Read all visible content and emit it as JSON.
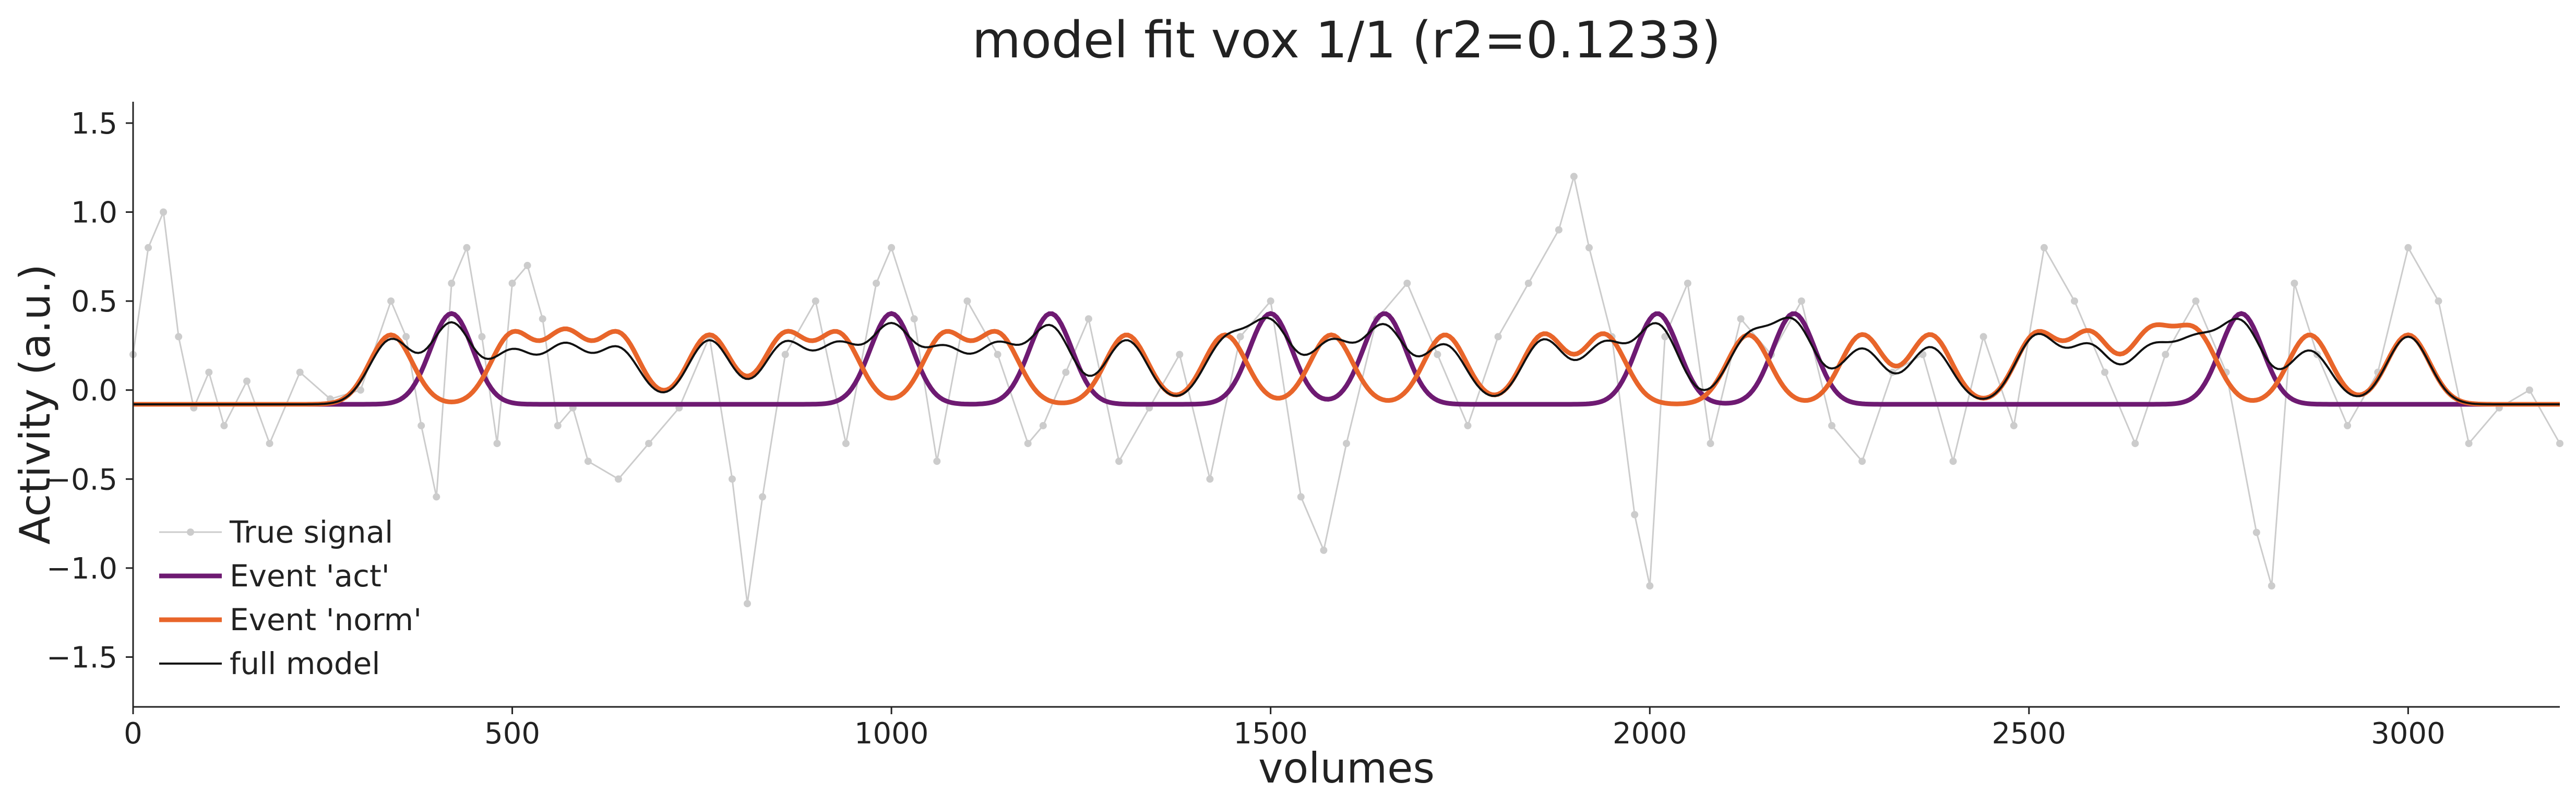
{
  "chart_data": {
    "type": "line",
    "title": "model fit vox 1/1 (r2=0.1233)",
    "xlabel": "volumes",
    "ylabel": "Activity (a.u.)",
    "xlim": [
      0,
      3200
    ],
    "ylim": [
      -1.78,
      1.62
    ],
    "xticks": [
      0,
      500,
      1000,
      1500,
      2000,
      2500,
      3000
    ],
    "yticks": [
      -1.5,
      -1.0,
      -0.5,
      0.0,
      0.5,
      1.0,
      1.5
    ],
    "ytick_labels": [
      "−1.5",
      "−1.0",
      "−0.5",
      "0.0",
      "0.5",
      "1.0",
      "1.5"
    ],
    "grid": false,
    "legend_position": "lower-left",
    "series": [
      {
        "name": "True signal",
        "style": "line+markers",
        "color": "#cccccc",
        "x": [
          0,
          20,
          40,
          60,
          80,
          100,
          120,
          150,
          180,
          220,
          260,
          300,
          340,
          360,
          380,
          400,
          420,
          440,
          460,
          480,
          500,
          520,
          540,
          560,
          580,
          600,
          640,
          680,
          720,
          760,
          790,
          810,
          830,
          860,
          900,
          940,
          980,
          1000,
          1030,
          1060,
          1100,
          1140,
          1180,
          1200,
          1230,
          1260,
          1300,
          1340,
          1380,
          1420,
          1460,
          1500,
          1540,
          1570,
          1600,
          1640,
          1680,
          1720,
          1760,
          1800,
          1840,
          1880,
          1900,
          1920,
          1950,
          1980,
          2000,
          2020,
          2050,
          2080,
          2120,
          2160,
          2200,
          2240,
          2280,
          2320,
          2360,
          2400,
          2440,
          2480,
          2520,
          2560,
          2600,
          2640,
          2680,
          2720,
          2760,
          2800,
          2820,
          2850,
          2880,
          2920,
          2960,
          3000,
          3040,
          3080,
          3120,
          3160,
          3200
        ],
        "y": [
          0.2,
          0.8,
          1.0,
          0.3,
          -0.1,
          0.1,
          -0.2,
          0.05,
          -0.3,
          0.1,
          -0.05,
          0.0,
          0.5,
          0.3,
          -0.2,
          -0.6,
          0.6,
          0.8,
          0.3,
          -0.3,
          0.6,
          0.7,
          0.4,
          -0.2,
          -0.1,
          -0.4,
          -0.5,
          -0.3,
          -0.1,
          0.3,
          -0.5,
          -1.2,
          -0.6,
          0.2,
          0.5,
          -0.3,
          0.6,
          0.8,
          0.4,
          -0.4,
          0.5,
          0.2,
          -0.3,
          -0.2,
          0.1,
          0.4,
          -0.4,
          -0.1,
          0.2,
          -0.5,
          0.3,
          0.5,
          -0.6,
          -0.9,
          -0.3,
          0.4,
          0.6,
          0.2,
          -0.2,
          0.3,
          0.6,
          0.9,
          1.2,
          0.8,
          0.3,
          -0.7,
          -1.1,
          0.3,
          0.6,
          -0.3,
          0.4,
          0.2,
          0.5,
          -0.2,
          -0.4,
          0.1,
          0.2,
          -0.4,
          0.3,
          -0.2,
          0.8,
          0.5,
          0.1,
          -0.3,
          0.2,
          0.5,
          0.1,
          -0.8,
          -1.1,
          0.6,
          0.2,
          -0.2,
          0.1,
          0.8,
          0.5,
          -0.3,
          -0.1,
          0.0,
          -0.3
        ]
      },
      {
        "name": "Event 'act'",
        "style": "line",
        "color": "#6e1a72",
        "baseline": -0.08,
        "peaks": [
          420,
          1000,
          1210,
          1500,
          1650,
          2010,
          2190,
          2780
        ],
        "peak_value": 0.43
      },
      {
        "name": "Event 'norm'",
        "style": "line",
        "color": "#e8652a",
        "baseline": -0.08,
        "peaks": [
          340,
          500,
          570,
          640,
          760,
          860,
          930,
          1070,
          1140,
          1310,
          1440,
          1580,
          1730,
          1860,
          1940,
          2130,
          2280,
          2370,
          2510,
          2580,
          2660,
          2720,
          2870,
          3000
        ],
        "peak_value": 0.31
      },
      {
        "name": "full model",
        "style": "line",
        "color": "#111111",
        "baseline": -0.08,
        "peaks": [
          340,
          420,
          500,
          570,
          640,
          760,
          860,
          930,
          1000,
          1070,
          1140,
          1210,
          1310,
          1440,
          1500,
          1580,
          1650,
          1730,
          1860,
          1940,
          2010,
          2130,
          2190,
          2280,
          2370,
          2510,
          2580,
          2660,
          2720,
          2780,
          2870,
          3000
        ],
        "peak_values": [
          0.28,
          0.37,
          0.21,
          0.24,
          0.23,
          0.28,
          0.26,
          0.24,
          0.35,
          0.22,
          0.24,
          0.35,
          0.28,
          0.26,
          0.36,
          0.26,
          0.35,
          0.25,
          0.28,
          0.25,
          0.36,
          0.28,
          0.36,
          0.23,
          0.24,
          0.3,
          0.24,
          0.22,
          0.24,
          0.36,
          0.22,
          0.3
        ]
      }
    ]
  }
}
